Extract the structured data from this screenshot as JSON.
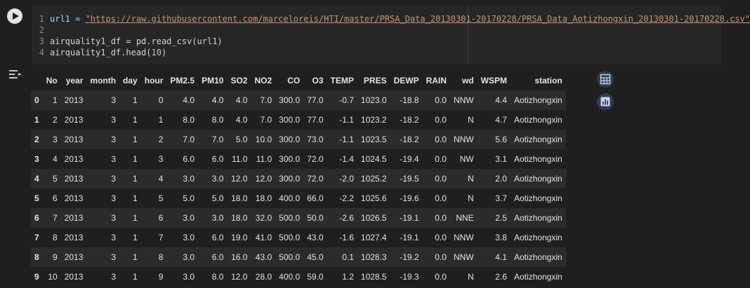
{
  "code": {
    "lines": [
      {
        "n": "1",
        "pre": "url1 = ",
        "str": "\"https://raw.githubusercontent.com/marceloreis/HTI/master/PRSA_Data_20130301-20170228/PRSA_Data_Aotizhongxin_20130301-20170228.csv\""
      },
      {
        "n": "2",
        "pre": "",
        "str": ""
      },
      {
        "n": "3",
        "pre": "airquality1_df = pd.read_csv(url1)",
        "str": ""
      },
      {
        "n": "4",
        "pre": "airquality1_df.head(",
        "num": "10",
        "post": ")"
      }
    ]
  },
  "icons": {
    "run": "play-icon",
    "output": "output-toggle-icon",
    "table": "table-icon",
    "chart": "chart-icon"
  },
  "table": {
    "columns": [
      "",
      "No",
      "year",
      "month",
      "day",
      "hour",
      "PM2.5",
      "PM10",
      "SO2",
      "NO2",
      "CO",
      "O3",
      "TEMP",
      "PRES",
      "DEWP",
      "RAIN",
      "wd",
      "WSPM",
      "station"
    ],
    "rows": [
      [
        "0",
        "1",
        "2013",
        "3",
        "1",
        "0",
        "4.0",
        "4.0",
        "4.0",
        "7.0",
        "300.0",
        "77.0",
        "-0.7",
        "1023.0",
        "-18.8",
        "0.0",
        "NNW",
        "4.4",
        "Aotizhongxin"
      ],
      [
        "1",
        "2",
        "2013",
        "3",
        "1",
        "1",
        "8.0",
        "8.0",
        "4.0",
        "7.0",
        "300.0",
        "77.0",
        "-1.1",
        "1023.2",
        "-18.2",
        "0.0",
        "N",
        "4.7",
        "Aotizhongxin"
      ],
      [
        "2",
        "3",
        "2013",
        "3",
        "1",
        "2",
        "7.0",
        "7.0",
        "5.0",
        "10.0",
        "300.0",
        "73.0",
        "-1.1",
        "1023.5",
        "-18.2",
        "0.0",
        "NNW",
        "5.6",
        "Aotizhongxin"
      ],
      [
        "3",
        "4",
        "2013",
        "3",
        "1",
        "3",
        "6.0",
        "6.0",
        "11.0",
        "11.0",
        "300.0",
        "72.0",
        "-1.4",
        "1024.5",
        "-19.4",
        "0.0",
        "NW",
        "3.1",
        "Aotizhongxin"
      ],
      [
        "4",
        "5",
        "2013",
        "3",
        "1",
        "4",
        "3.0",
        "3.0",
        "12.0",
        "12.0",
        "300.0",
        "72.0",
        "-2.0",
        "1025.2",
        "-19.5",
        "0.0",
        "N",
        "2.0",
        "Aotizhongxin"
      ],
      [
        "5",
        "6",
        "2013",
        "3",
        "1",
        "5",
        "5.0",
        "5.0",
        "18.0",
        "18.0",
        "400.0",
        "66.0",
        "-2.2",
        "1025.6",
        "-19.6",
        "0.0",
        "N",
        "3.7",
        "Aotizhongxin"
      ],
      [
        "6",
        "7",
        "2013",
        "3",
        "1",
        "6",
        "3.0",
        "3.0",
        "18.0",
        "32.0",
        "500.0",
        "50.0",
        "-2.6",
        "1026.5",
        "-19.1",
        "0.0",
        "NNE",
        "2.5",
        "Aotizhongxin"
      ],
      [
        "7",
        "8",
        "2013",
        "3",
        "1",
        "7",
        "3.0",
        "6.0",
        "19.0",
        "41.0",
        "500.0",
        "43.0",
        "-1.6",
        "1027.4",
        "-19.1",
        "0.0",
        "NNW",
        "3.8",
        "Aotizhongxin"
      ],
      [
        "8",
        "9",
        "2013",
        "3",
        "1",
        "8",
        "3.0",
        "6.0",
        "16.0",
        "43.0",
        "500.0",
        "45.0",
        "0.1",
        "1028.3",
        "-19.2",
        "0.0",
        "NNW",
        "4.1",
        "Aotizhongxin"
      ],
      [
        "9",
        "10",
        "2013",
        "3",
        "1",
        "9",
        "3.0",
        "8.0",
        "12.0",
        "28.0",
        "400.0",
        "59.0",
        "1.2",
        "1028.5",
        "-19.3",
        "0.0",
        "N",
        "2.6",
        "Aotizhongxin"
      ]
    ]
  }
}
